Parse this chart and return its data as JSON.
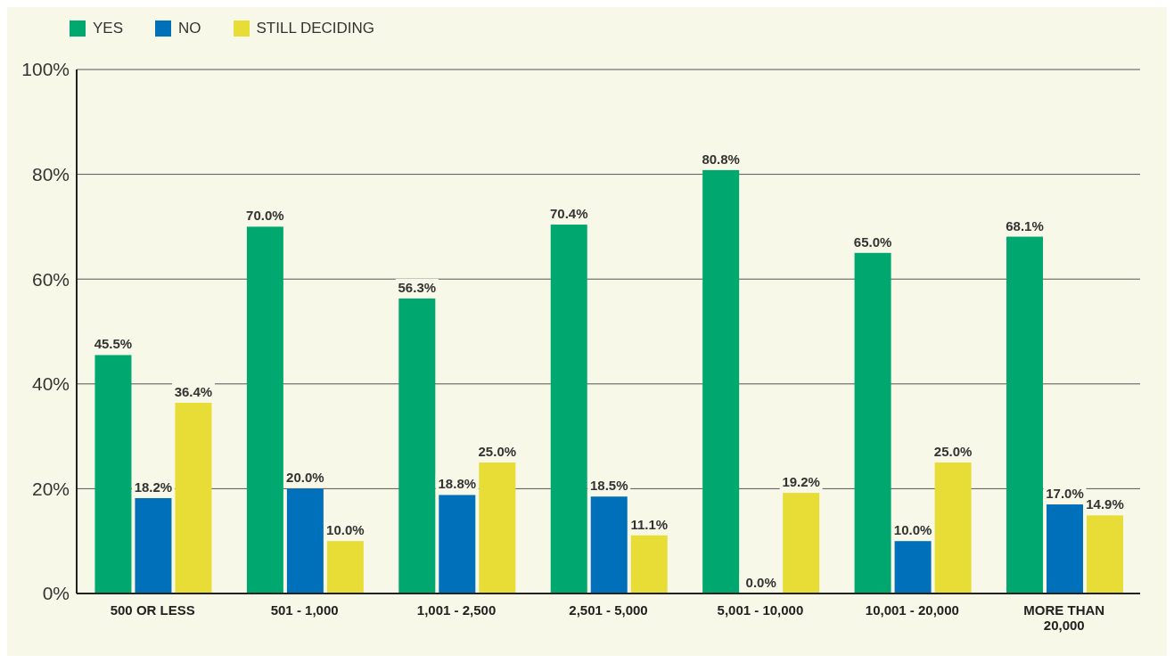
{
  "chart_data": {
    "type": "bar",
    "categories": [
      "500 OR LESS",
      "501 - 1,000",
      "1,001 - 2,500",
      "2,501 - 5,000",
      "5,001 - 10,000",
      "10,001 - 20,000",
      "MORE THAN 20,000"
    ],
    "series": [
      {
        "name": "YES",
        "color": "#00a870",
        "values": [
          45.5,
          70.0,
          56.3,
          70.4,
          80.8,
          65.0,
          68.1
        ],
        "value_labels": [
          "45.5%",
          "70.0%",
          "56.3%",
          "70.4%",
          "80.8%",
          "65.0%",
          "68.1%"
        ]
      },
      {
        "name": "NO",
        "color": "#0070bb",
        "values": [
          18.2,
          20.0,
          18.8,
          18.5,
          0.0,
          10.0,
          17.0
        ],
        "value_labels": [
          "18.2%",
          "20.0%",
          "18.8%",
          "18.5%",
          "0.0%",
          "10.0%",
          "17.0%"
        ]
      },
      {
        "name": "STILL DECIDING",
        "color": "#e8dc36",
        "values": [
          36.4,
          10.0,
          25.0,
          11.1,
          19.2,
          25.0,
          14.9
        ],
        "value_labels": [
          "36.4%",
          "10.0%",
          "25.0%",
          "11.1%",
          "19.2%",
          "25.0%",
          "14.9%"
        ]
      }
    ],
    "ylim": [
      0,
      100
    ],
    "yticks": [
      {
        "value": 0,
        "label": "0%"
      },
      {
        "value": 20,
        "label": "20%"
      },
      {
        "value": 40,
        "label": "40%"
      },
      {
        "value": 60,
        "label": "60%"
      },
      {
        "value": 80,
        "label": "80%"
      },
      {
        "value": 100,
        "label": "100%"
      }
    ],
    "grid": "y",
    "legend": "top left"
  }
}
